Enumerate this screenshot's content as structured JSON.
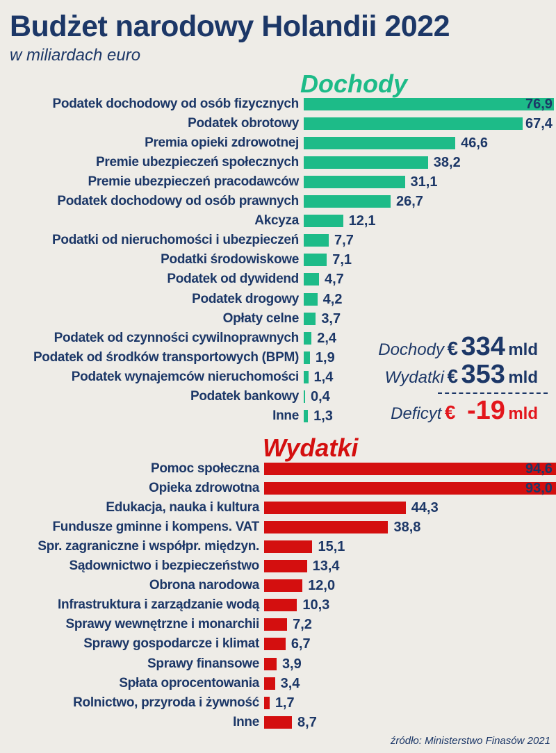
{
  "title": "Budżet narodowy Holandii 2022",
  "subtitle": "w miliardach euro",
  "colors": {
    "revenue": "#1dbb88",
    "expense": "#d40f0f",
    "text": "#1c3767",
    "deficit": "#e3161c"
  },
  "summary": {
    "revenue_label": "Dochody",
    "revenue_currency": "€",
    "revenue_value": "334",
    "revenue_unit": "mld",
    "expense_label": "Wydatki",
    "expense_currency": "€",
    "expense_value": "353",
    "expense_unit": "mld",
    "deficit_label": "Deficyt",
    "deficit_currency": "€",
    "deficit_value": "-19",
    "deficit_unit": "mld"
  },
  "source": "źródło: Ministerstwo Finasów 2021",
  "chart_data": [
    {
      "type": "bar",
      "orientation": "horizontal",
      "title": "Dochody",
      "categories": [
        "Podatek dochodowy od osób fizycznych",
        "Podatek obrotowy",
        "Premia opieki zdrowotnej",
        "Premie ubezpieczeń społecznych",
        "Premie ubezpieczeń pracodawców",
        "Podatek dochodowy od osób prawnych",
        "Akcyza",
        "Podatki od nieruchomości i ubezpieczeń",
        "Podatki środowiskowe",
        "Podatek od dywidend",
        "Podatek drogowy",
        "Opłaty celne",
        "Podatek od czynności cywilnoprawnych",
        "Podatek od środków transportowych (BPM)",
        "Podatek wynajemców nieruchomości",
        "Podatek bankowy",
        "Inne"
      ],
      "values": [
        76.9,
        67.4,
        46.6,
        38.2,
        31.1,
        26.7,
        12.1,
        7.7,
        7.1,
        4.7,
        4.2,
        3.7,
        2.4,
        1.9,
        1.4,
        0.4,
        1.3
      ],
      "value_labels": [
        "76,9",
        "67,4",
        "46,6",
        "38,2",
        "31,1",
        "26,7",
        "12,1",
        "7,7",
        "7,1",
        "4,7",
        "4,2",
        "3,7",
        "2,4",
        "1,9",
        "1,4",
        "0,4",
        "1,3"
      ]
    },
    {
      "type": "bar",
      "orientation": "horizontal",
      "title": "Wydatki",
      "categories": [
        "Pomoc społeczna",
        "Opieka zdrowotna",
        "Edukacja, nauka i kultura",
        "Fundusze gminne i kompens. VAT",
        "Spr. zagraniczne i współpr. międzyn.",
        "Sądownictwo i bezpieczeństwo",
        "Obrona narodowa",
        "Infrastruktura i zarządzanie wodą",
        "Sprawy wewnętrzne i monarchii",
        "Sprawy gospodarcze i klimat",
        "Sprawy finansowe",
        "Spłata oprocentowania",
        "Rolnictwo, przyroda i żywność",
        "Inne"
      ],
      "values": [
        94.6,
        93.0,
        44.3,
        38.8,
        15.1,
        13.4,
        12.0,
        10.3,
        7.2,
        6.7,
        3.9,
        3.4,
        1.7,
        8.7
      ],
      "value_labels": [
        "94,6",
        "93,0",
        "44,3",
        "38,8",
        "15,1",
        "13,4",
        "12,0",
        "10,3",
        "7,2",
        "6,7",
        "3,9",
        "3,4",
        "1,7",
        "8,7"
      ]
    }
  ]
}
